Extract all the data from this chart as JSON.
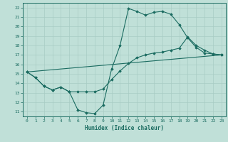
{
  "xlabel": "Humidex (Indice chaleur)",
  "bg_color": "#c0e0d8",
  "line_color": "#1a6b60",
  "grid_color": "#a8ccc4",
  "xlim": [
    -0.5,
    23.5
  ],
  "ylim": [
    10.5,
    22.5
  ],
  "xticks": [
    0,
    1,
    2,
    3,
    4,
    5,
    6,
    7,
    8,
    9,
    10,
    11,
    12,
    13,
    14,
    15,
    16,
    17,
    18,
    19,
    20,
    21,
    22,
    23
  ],
  "yticks": [
    11,
    12,
    13,
    14,
    15,
    16,
    17,
    18,
    19,
    20,
    21,
    22
  ],
  "line1_x": [
    0,
    1,
    2,
    3,
    4,
    5,
    6,
    7,
    8,
    9,
    10,
    11,
    12,
    13,
    14,
    15,
    16,
    17,
    18,
    19,
    20,
    21,
    22,
    23
  ],
  "line1_y": [
    15.2,
    14.6,
    13.7,
    13.3,
    13.6,
    13.1,
    11.2,
    10.9,
    10.8,
    11.7,
    15.5,
    18.0,
    21.9,
    21.6,
    21.2,
    21.5,
    21.6,
    21.3,
    20.2,
    18.8,
    17.8,
    17.2,
    17.1,
    17.0
  ],
  "line2_x": [
    0,
    1,
    2,
    3,
    4,
    5,
    6,
    7,
    8,
    9,
    10,
    11,
    12,
    13,
    14,
    15,
    16,
    17,
    18,
    19,
    20,
    21,
    22,
    23
  ],
  "line2_y": [
    15.2,
    14.6,
    13.7,
    13.3,
    13.6,
    13.1,
    13.1,
    13.1,
    13.1,
    13.4,
    14.4,
    15.3,
    16.1,
    16.7,
    17.0,
    17.2,
    17.3,
    17.5,
    17.7,
    18.9,
    18.0,
    17.5,
    17.1,
    17.0
  ],
  "line3_x": [
    0,
    23
  ],
  "line3_y": [
    15.2,
    17.0
  ]
}
